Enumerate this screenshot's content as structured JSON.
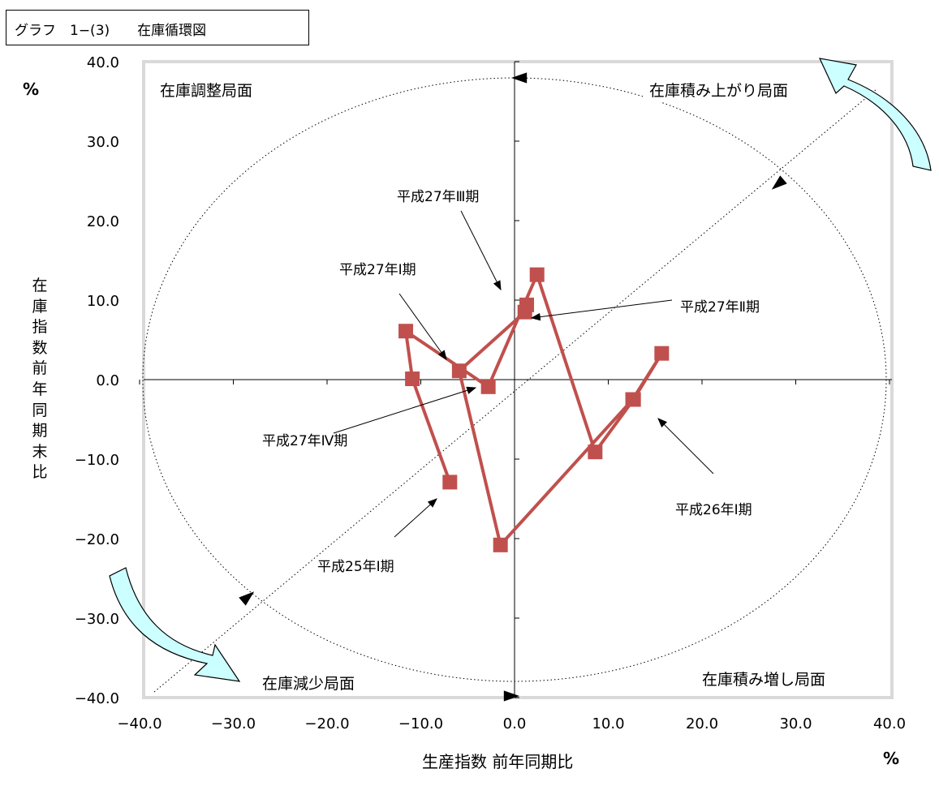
{
  "caption": "グラフ　1−(3)　　在庫循環図",
  "chart_data": {
    "type": "line",
    "xlabel": "生産指数 前年同期比",
    "ylabel": "在庫指数　前年同期末比",
    "x_unit": "%",
    "y_unit": "%",
    "xlim": [
      -40,
      40
    ],
    "ylim": [
      -40,
      40
    ],
    "x_ticks": [
      "−40.0",
      "−30.0",
      "−20.0",
      "−10.0",
      "0.0",
      "10.0",
      "20.0",
      "30.0",
      "40.0"
    ],
    "y_ticks": [
      "40.0",
      "30.0",
      "20.0",
      "10.0",
      "0.0",
      "−10.0",
      "−20.0",
      "−30.0",
      "−40.0"
    ],
    "quadrants": {
      "top_left": "在庫調整局面",
      "top_right": "在庫積み上がり局面",
      "bottom_left": "在庫減少局面",
      "bottom_right": "在庫積み増し局面"
    },
    "series": [
      {
        "color": "#c0504d",
        "points": [
          [
            -6.9,
            -12.9
          ],
          [
            -10.9,
            0.1
          ],
          [
            -11.6,
            6.1
          ],
          [
            -2.8,
            -0.9
          ],
          [
            2.4,
            13.2
          ],
          [
            8.6,
            -9.1
          ],
          [
            12.7,
            -2.5
          ],
          [
            15.7,
            3.3
          ],
          [
            12.6,
            -2.5
          ],
          [
            -1.5,
            -20.8
          ],
          [
            -5.9,
            1.1
          ],
          [
            1.1,
            8.5
          ],
          [
            1.3,
            9.4
          ]
        ]
      }
    ],
    "annotations": [
      {
        "text": "平成25年Ⅰ期"
      },
      {
        "text": "平成26年Ⅰ期"
      },
      {
        "text": "平成27年Ⅰ期"
      },
      {
        "text": "平成27年Ⅱ期"
      },
      {
        "text": "平成27年Ⅲ期"
      },
      {
        "text": "平成27年Ⅳ期"
      }
    ]
  }
}
